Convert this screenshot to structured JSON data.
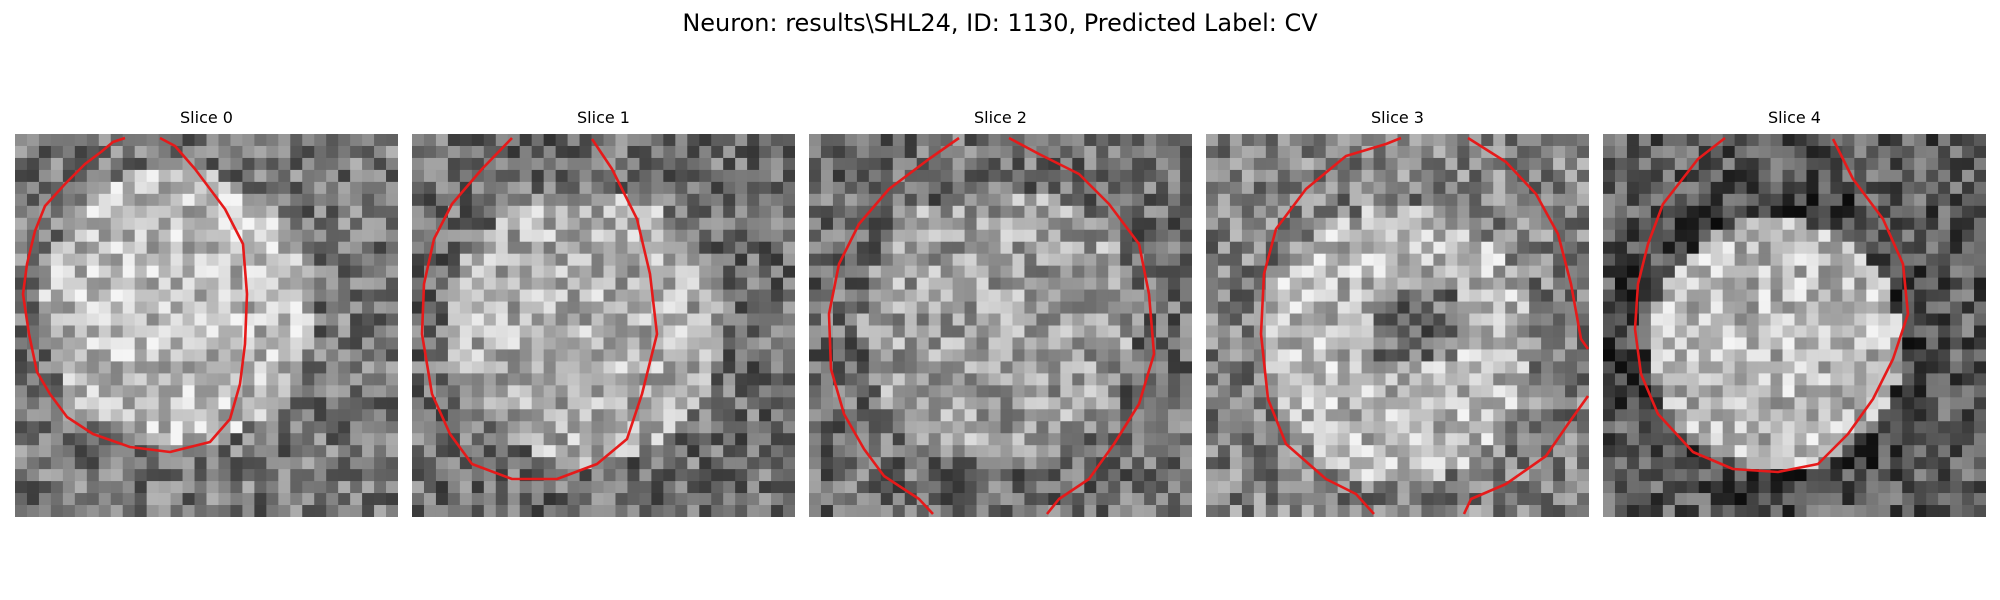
{
  "figure": {
    "title": "Neuron: results\\SHL24, ID: 1130, Predicted Label: CV"
  },
  "panels": [
    {
      "title": "Slice 0"
    },
    {
      "title": "Slice 1"
    },
    {
      "title": "Slice 2"
    },
    {
      "title": "Slice 3"
    },
    {
      "title": "Slice 4"
    }
  ],
  "colors": {
    "contour": "#e61a1a",
    "background": "#ffffff"
  }
}
